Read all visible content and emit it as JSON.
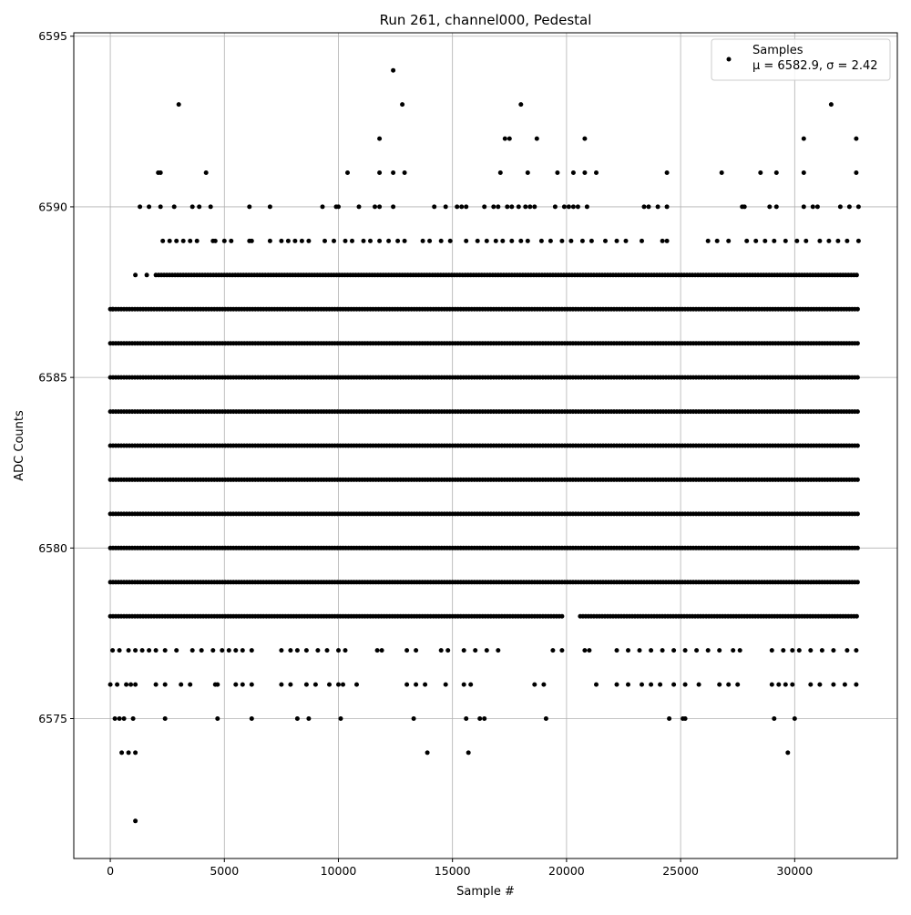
{
  "chart_data": {
    "type": "scatter",
    "title": "Run 261, channel000, Pedestal",
    "xlabel": "Sample #",
    "ylabel": "ADC Counts",
    "xlim": [
      -1600,
      34500
    ],
    "ylim": [
      6570.9,
      6595.1
    ],
    "xticks": [
      0,
      5000,
      10000,
      15000,
      20000,
      25000,
      30000
    ],
    "yticks": [
      6575,
      6580,
      6585,
      6590,
      6595
    ],
    "xtick_labels": [
      "0",
      "5000",
      "10000",
      "15000",
      "20000",
      "25000",
      "30000"
    ],
    "ytick_labels": [
      "6575",
      "6580",
      "6585",
      "6590",
      "6595"
    ],
    "grid": true,
    "legend_position": "top-right",
    "series": [
      {
        "name": "Samples",
        "color": "#000000",
        "marker": "circle"
      }
    ],
    "legend": {
      "label": "Samples",
      "stats": "μ = 6582.9, σ = 2.42"
    },
    "x_range": [
      0,
      32767
    ],
    "mean": 6582.9,
    "sigma": 2.42,
    "dense_levels": [
      {
        "y": 6587,
        "xs": [
          [
            0,
            32767
          ]
        ]
      },
      {
        "y": 6586,
        "xs": [
          [
            0,
            32767
          ]
        ]
      },
      {
        "y": 6585,
        "xs": [
          [
            0,
            32767
          ]
        ]
      },
      {
        "y": 6584,
        "xs": [
          [
            0,
            32767
          ]
        ]
      },
      {
        "y": 6583,
        "xs": [
          [
            0,
            32767
          ]
        ]
      },
      {
        "y": 6582,
        "xs": [
          [
            0,
            32767
          ]
        ]
      },
      {
        "y": 6581,
        "xs": [
          [
            0,
            32767
          ]
        ]
      },
      {
        "y": 6580,
        "xs": [
          [
            0,
            32767
          ]
        ]
      },
      {
        "y": 6579,
        "xs": [
          [
            0,
            32767
          ]
        ]
      },
      {
        "y": 6588,
        "xs": [
          [
            2000,
            32767
          ]
        ]
      },
      {
        "y": 6578,
        "xs": [
          [
            0,
            19800
          ],
          [
            20600,
            32767
          ]
        ]
      }
    ],
    "sparse_points": [
      {
        "x": 3000,
        "y": 6593
      },
      {
        "x": 12400,
        "y": 6594
      },
      {
        "x": 12800,
        "y": 6593
      },
      {
        "x": 18000,
        "y": 6593
      },
      {
        "x": 31600,
        "y": 6593
      },
      {
        "x": 11800,
        "y": 6592
      },
      {
        "x": 17300,
        "y": 6592
      },
      {
        "x": 17500,
        "y": 6592
      },
      {
        "x": 18700,
        "y": 6592
      },
      {
        "x": 20800,
        "y": 6592
      },
      {
        "x": 30400,
        "y": 6592
      },
      {
        "x": 32700,
        "y": 6592
      },
      {
        "x": 2100,
        "y": 6591
      },
      {
        "x": 2200,
        "y": 6591
      },
      {
        "x": 4200,
        "y": 6591
      },
      {
        "x": 10400,
        "y": 6591
      },
      {
        "x": 11800,
        "y": 6591
      },
      {
        "x": 12400,
        "y": 6591
      },
      {
        "x": 12900,
        "y": 6591
      },
      {
        "x": 17100,
        "y": 6591
      },
      {
        "x": 18300,
        "y": 6591
      },
      {
        "x": 19600,
        "y": 6591
      },
      {
        "x": 20300,
        "y": 6591
      },
      {
        "x": 20800,
        "y": 6591
      },
      {
        "x": 21300,
        "y": 6591
      },
      {
        "x": 24400,
        "y": 6591
      },
      {
        "x": 26800,
        "y": 6591
      },
      {
        "x": 28500,
        "y": 6591
      },
      {
        "x": 29200,
        "y": 6591
      },
      {
        "x": 30400,
        "y": 6591
      },
      {
        "x": 32700,
        "y": 6591
      },
      {
        "x": 1300,
        "y": 6590
      },
      {
        "x": 1700,
        "y": 6590
      },
      {
        "x": 2200,
        "y": 6590
      },
      {
        "x": 2800,
        "y": 6590
      },
      {
        "x": 3600,
        "y": 6590
      },
      {
        "x": 3900,
        "y": 6590
      },
      {
        "x": 4400,
        "y": 6590
      },
      {
        "x": 6100,
        "y": 6590
      },
      {
        "x": 7000,
        "y": 6590
      },
      {
        "x": 9300,
        "y": 6590
      },
      {
        "x": 9900,
        "y": 6590
      },
      {
        "x": 10000,
        "y": 6590
      },
      {
        "x": 10900,
        "y": 6590
      },
      {
        "x": 11600,
        "y": 6590
      },
      {
        "x": 11800,
        "y": 6590
      },
      {
        "x": 12400,
        "y": 6590
      },
      {
        "x": 14200,
        "y": 6590
      },
      {
        "x": 14700,
        "y": 6590
      },
      {
        "x": 15200,
        "y": 6590
      },
      {
        "x": 15400,
        "y": 6590
      },
      {
        "x": 15600,
        "y": 6590
      },
      {
        "x": 16400,
        "y": 6590
      },
      {
        "x": 16800,
        "y": 6590
      },
      {
        "x": 17000,
        "y": 6590
      },
      {
        "x": 17400,
        "y": 6590
      },
      {
        "x": 17600,
        "y": 6590
      },
      {
        "x": 17900,
        "y": 6590
      },
      {
        "x": 18200,
        "y": 6590
      },
      {
        "x": 18400,
        "y": 6590
      },
      {
        "x": 18600,
        "y": 6590
      },
      {
        "x": 19500,
        "y": 6590
      },
      {
        "x": 19900,
        "y": 6590
      },
      {
        "x": 20100,
        "y": 6590
      },
      {
        "x": 20300,
        "y": 6590
      },
      {
        "x": 20500,
        "y": 6590
      },
      {
        "x": 20900,
        "y": 6590
      },
      {
        "x": 23400,
        "y": 6590
      },
      {
        "x": 23600,
        "y": 6590
      },
      {
        "x": 24000,
        "y": 6590
      },
      {
        "x": 24400,
        "y": 6590
      },
      {
        "x": 27700,
        "y": 6590
      },
      {
        "x": 27800,
        "y": 6590
      },
      {
        "x": 28900,
        "y": 6590
      },
      {
        "x": 29200,
        "y": 6590
      },
      {
        "x": 30400,
        "y": 6590
      },
      {
        "x": 30800,
        "y": 6590
      },
      {
        "x": 31000,
        "y": 6590
      },
      {
        "x": 32000,
        "y": 6590
      },
      {
        "x": 32400,
        "y": 6590
      },
      {
        "x": 32800,
        "y": 6590
      },
      {
        "x": 2300,
        "y": 6589
      },
      {
        "x": 2600,
        "y": 6589
      },
      {
        "x": 2900,
        "y": 6589
      },
      {
        "x": 3200,
        "y": 6589
      },
      {
        "x": 3500,
        "y": 6589
      },
      {
        "x": 3800,
        "y": 6589
      },
      {
        "x": 4500,
        "y": 6589
      },
      {
        "x": 4600,
        "y": 6589
      },
      {
        "x": 5000,
        "y": 6589
      },
      {
        "x": 5300,
        "y": 6589
      },
      {
        "x": 6100,
        "y": 6589
      },
      {
        "x": 6200,
        "y": 6589
      },
      {
        "x": 7000,
        "y": 6589
      },
      {
        "x": 7500,
        "y": 6589
      },
      {
        "x": 7800,
        "y": 6589
      },
      {
        "x": 8100,
        "y": 6589
      },
      {
        "x": 8400,
        "y": 6589
      },
      {
        "x": 8700,
        "y": 6589
      },
      {
        "x": 9400,
        "y": 6589
      },
      {
        "x": 9800,
        "y": 6589
      },
      {
        "x": 10300,
        "y": 6589
      },
      {
        "x": 10600,
        "y": 6589
      },
      {
        "x": 11100,
        "y": 6589
      },
      {
        "x": 11400,
        "y": 6589
      },
      {
        "x": 11800,
        "y": 6589
      },
      {
        "x": 12200,
        "y": 6589
      },
      {
        "x": 12600,
        "y": 6589
      },
      {
        "x": 12900,
        "y": 6589
      },
      {
        "x": 13700,
        "y": 6589
      },
      {
        "x": 14000,
        "y": 6589
      },
      {
        "x": 14500,
        "y": 6589
      },
      {
        "x": 14900,
        "y": 6589
      },
      {
        "x": 15600,
        "y": 6589
      },
      {
        "x": 16100,
        "y": 6589
      },
      {
        "x": 16500,
        "y": 6589
      },
      {
        "x": 16900,
        "y": 6589
      },
      {
        "x": 17200,
        "y": 6589
      },
      {
        "x": 17600,
        "y": 6589
      },
      {
        "x": 18000,
        "y": 6589
      },
      {
        "x": 18300,
        "y": 6589
      },
      {
        "x": 18900,
        "y": 6589
      },
      {
        "x": 19300,
        "y": 6589
      },
      {
        "x": 19800,
        "y": 6589
      },
      {
        "x": 20200,
        "y": 6589
      },
      {
        "x": 20700,
        "y": 6589
      },
      {
        "x": 21100,
        "y": 6589
      },
      {
        "x": 21700,
        "y": 6589
      },
      {
        "x": 22200,
        "y": 6589
      },
      {
        "x": 22600,
        "y": 6589
      },
      {
        "x": 23300,
        "y": 6589
      },
      {
        "x": 24200,
        "y": 6589
      },
      {
        "x": 24400,
        "y": 6589
      },
      {
        "x": 26200,
        "y": 6589
      },
      {
        "x": 26600,
        "y": 6589
      },
      {
        "x": 27100,
        "y": 6589
      },
      {
        "x": 27900,
        "y": 6589
      },
      {
        "x": 28300,
        "y": 6589
      },
      {
        "x": 28700,
        "y": 6589
      },
      {
        "x": 29100,
        "y": 6589
      },
      {
        "x": 29600,
        "y": 6589
      },
      {
        "x": 30100,
        "y": 6589
      },
      {
        "x": 30500,
        "y": 6589
      },
      {
        "x": 31100,
        "y": 6589
      },
      {
        "x": 31500,
        "y": 6589
      },
      {
        "x": 31900,
        "y": 6589
      },
      {
        "x": 32300,
        "y": 6589
      },
      {
        "x": 32800,
        "y": 6589
      },
      {
        "x": 1100,
        "y": 6588
      },
      {
        "x": 1600,
        "y": 6588
      },
      {
        "x": 100,
        "y": 6587
      },
      {
        "x": 100,
        "y": 6577
      },
      {
        "x": 400,
        "y": 6577
      },
      {
        "x": 800,
        "y": 6577
      },
      {
        "x": 1100,
        "y": 6577
      },
      {
        "x": 1400,
        "y": 6577
      },
      {
        "x": 1700,
        "y": 6577
      },
      {
        "x": 2000,
        "y": 6577
      },
      {
        "x": 2400,
        "y": 6577
      },
      {
        "x": 2900,
        "y": 6577
      },
      {
        "x": 3600,
        "y": 6577
      },
      {
        "x": 4000,
        "y": 6577
      },
      {
        "x": 4500,
        "y": 6577
      },
      {
        "x": 4900,
        "y": 6577
      },
      {
        "x": 5200,
        "y": 6577
      },
      {
        "x": 5500,
        "y": 6577
      },
      {
        "x": 5800,
        "y": 6577
      },
      {
        "x": 6200,
        "y": 6577
      },
      {
        "x": 7500,
        "y": 6577
      },
      {
        "x": 7900,
        "y": 6577
      },
      {
        "x": 8200,
        "y": 6577
      },
      {
        "x": 8600,
        "y": 6577
      },
      {
        "x": 9100,
        "y": 6577
      },
      {
        "x": 9500,
        "y": 6577
      },
      {
        "x": 10000,
        "y": 6577
      },
      {
        "x": 10300,
        "y": 6577
      },
      {
        "x": 11700,
        "y": 6577
      },
      {
        "x": 11900,
        "y": 6577
      },
      {
        "x": 13000,
        "y": 6577
      },
      {
        "x": 13400,
        "y": 6577
      },
      {
        "x": 14500,
        "y": 6577
      },
      {
        "x": 14800,
        "y": 6577
      },
      {
        "x": 15500,
        "y": 6577
      },
      {
        "x": 16000,
        "y": 6577
      },
      {
        "x": 16500,
        "y": 6577
      },
      {
        "x": 17000,
        "y": 6577
      },
      {
        "x": 19400,
        "y": 6577
      },
      {
        "x": 19800,
        "y": 6577
      },
      {
        "x": 20800,
        "y": 6577
      },
      {
        "x": 21000,
        "y": 6577
      },
      {
        "x": 22200,
        "y": 6577
      },
      {
        "x": 22700,
        "y": 6577
      },
      {
        "x": 23200,
        "y": 6577
      },
      {
        "x": 23700,
        "y": 6577
      },
      {
        "x": 24200,
        "y": 6577
      },
      {
        "x": 24700,
        "y": 6577
      },
      {
        "x": 25200,
        "y": 6577
      },
      {
        "x": 25700,
        "y": 6577
      },
      {
        "x": 26200,
        "y": 6577
      },
      {
        "x": 26700,
        "y": 6577
      },
      {
        "x": 27300,
        "y": 6577
      },
      {
        "x": 27600,
        "y": 6577
      },
      {
        "x": 29000,
        "y": 6577
      },
      {
        "x": 29500,
        "y": 6577
      },
      {
        "x": 29900,
        "y": 6577
      },
      {
        "x": 30200,
        "y": 6577
      },
      {
        "x": 30700,
        "y": 6577
      },
      {
        "x": 31200,
        "y": 6577
      },
      {
        "x": 31700,
        "y": 6577
      },
      {
        "x": 32300,
        "y": 6577
      },
      {
        "x": 32700,
        "y": 6577
      },
      {
        "x": 0,
        "y": 6576
      },
      {
        "x": 300,
        "y": 6576
      },
      {
        "x": 700,
        "y": 6576
      },
      {
        "x": 900,
        "y": 6576
      },
      {
        "x": 1100,
        "y": 6576
      },
      {
        "x": 2000,
        "y": 6576
      },
      {
        "x": 2400,
        "y": 6576
      },
      {
        "x": 3100,
        "y": 6576
      },
      {
        "x": 3500,
        "y": 6576
      },
      {
        "x": 4600,
        "y": 6576
      },
      {
        "x": 4700,
        "y": 6576
      },
      {
        "x": 5500,
        "y": 6576
      },
      {
        "x": 5800,
        "y": 6576
      },
      {
        "x": 6200,
        "y": 6576
      },
      {
        "x": 7500,
        "y": 6576
      },
      {
        "x": 7900,
        "y": 6576
      },
      {
        "x": 8600,
        "y": 6576
      },
      {
        "x": 9000,
        "y": 6576
      },
      {
        "x": 9600,
        "y": 6576
      },
      {
        "x": 10000,
        "y": 6576
      },
      {
        "x": 10200,
        "y": 6576
      },
      {
        "x": 10800,
        "y": 6576
      },
      {
        "x": 13000,
        "y": 6576
      },
      {
        "x": 13400,
        "y": 6576
      },
      {
        "x": 13800,
        "y": 6576
      },
      {
        "x": 14700,
        "y": 6576
      },
      {
        "x": 15500,
        "y": 6576
      },
      {
        "x": 15800,
        "y": 6576
      },
      {
        "x": 18600,
        "y": 6576
      },
      {
        "x": 19000,
        "y": 6576
      },
      {
        "x": 21300,
        "y": 6576
      },
      {
        "x": 22200,
        "y": 6576
      },
      {
        "x": 22700,
        "y": 6576
      },
      {
        "x": 23300,
        "y": 6576
      },
      {
        "x": 23700,
        "y": 6576
      },
      {
        "x": 24100,
        "y": 6576
      },
      {
        "x": 24700,
        "y": 6576
      },
      {
        "x": 25200,
        "y": 6576
      },
      {
        "x": 25800,
        "y": 6576
      },
      {
        "x": 26700,
        "y": 6576
      },
      {
        "x": 27100,
        "y": 6576
      },
      {
        "x": 27500,
        "y": 6576
      },
      {
        "x": 29000,
        "y": 6576
      },
      {
        "x": 29300,
        "y": 6576
      },
      {
        "x": 29600,
        "y": 6576
      },
      {
        "x": 29900,
        "y": 6576
      },
      {
        "x": 30700,
        "y": 6576
      },
      {
        "x": 31100,
        "y": 6576
      },
      {
        "x": 31700,
        "y": 6576
      },
      {
        "x": 32200,
        "y": 6576
      },
      {
        "x": 32700,
        "y": 6576
      },
      {
        "x": 200,
        "y": 6575
      },
      {
        "x": 400,
        "y": 6575
      },
      {
        "x": 600,
        "y": 6575
      },
      {
        "x": 1000,
        "y": 6575
      },
      {
        "x": 2400,
        "y": 6575
      },
      {
        "x": 4700,
        "y": 6575
      },
      {
        "x": 6200,
        "y": 6575
      },
      {
        "x": 8200,
        "y": 6575
      },
      {
        "x": 8700,
        "y": 6575
      },
      {
        "x": 10100,
        "y": 6575
      },
      {
        "x": 13300,
        "y": 6575
      },
      {
        "x": 15600,
        "y": 6575
      },
      {
        "x": 16200,
        "y": 6575
      },
      {
        "x": 16400,
        "y": 6575
      },
      {
        "x": 19100,
        "y": 6575
      },
      {
        "x": 24500,
        "y": 6575
      },
      {
        "x": 25100,
        "y": 6575
      },
      {
        "x": 25200,
        "y": 6575
      },
      {
        "x": 29100,
        "y": 6575
      },
      {
        "x": 30000,
        "y": 6575
      },
      {
        "x": 500,
        "y": 6574
      },
      {
        "x": 800,
        "y": 6574
      },
      {
        "x": 1100,
        "y": 6574
      },
      {
        "x": 13900,
        "y": 6574
      },
      {
        "x": 15700,
        "y": 6574
      },
      {
        "x": 29700,
        "y": 6574
      },
      {
        "x": 1100,
        "y": 6572
      }
    ]
  }
}
